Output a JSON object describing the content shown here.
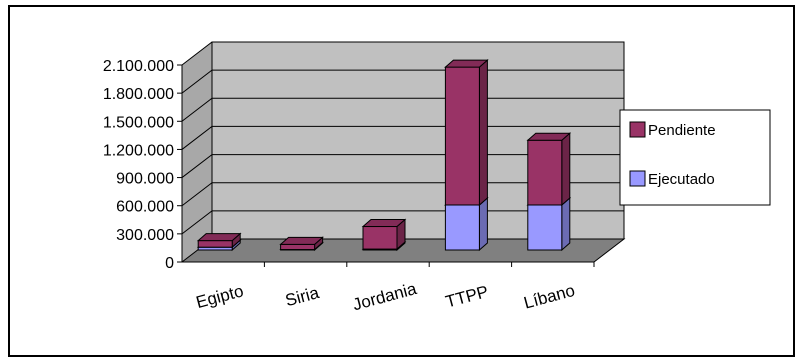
{
  "chart_data": {
    "type": "bar",
    "stacked": true,
    "three_d": true,
    "categories": [
      "Egipto",
      "Siria",
      "Jordania",
      "TTPP",
      "Líbano"
    ],
    "series": [
      {
        "name": "Ejecutado",
        "color": "#9999ff",
        "values": [
          30000,
          5000,
          10000,
          480000,
          480000
        ]
      },
      {
        "name": "Pendiente",
        "color": "#993366",
        "values": [
          70000,
          55000,
          240000,
          1470000,
          690000
        ]
      }
    ],
    "yticks": [
      "0",
      "300.000",
      "600.000",
      "900.000",
      "1.200.000",
      "1.500.000",
      "1.800.000",
      "2.100.000"
    ],
    "ylim": [
      0,
      2100000
    ],
    "grid": true,
    "legend": "right",
    "colors": {
      "wall": "#c0c0c0",
      "floor": "#808080"
    }
  }
}
